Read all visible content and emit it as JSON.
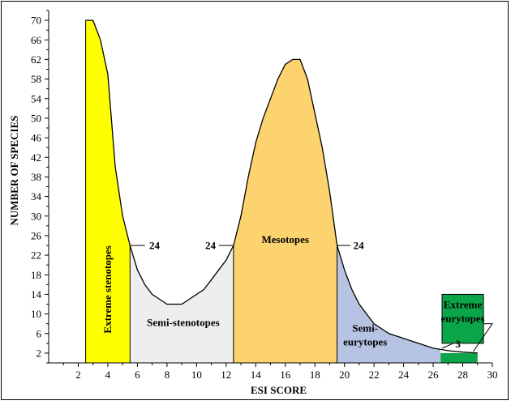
{
  "chart_data": {
    "type": "area",
    "xlabel": "ESI SCORE",
    "ylabel": "NUMBER OF SPECIES",
    "xlim": [
      0,
      30
    ],
    "ylim": [
      0,
      72
    ],
    "xticks": [
      2,
      4,
      6,
      8,
      10,
      12,
      14,
      16,
      18,
      20,
      22,
      24,
      26,
      28,
      30
    ],
    "yticks": [
      2,
      6,
      10,
      14,
      18,
      22,
      26,
      30,
      34,
      38,
      42,
      46,
      50,
      54,
      58,
      62,
      66,
      70
    ],
    "x": [
      2.5,
      3,
      3.5,
      4,
      4.5,
      5,
      5.5,
      6,
      6.5,
      7,
      7.5,
      8,
      8.5,
      9,
      9.5,
      10,
      10.5,
      11,
      11.5,
      12,
      12.5,
      13,
      13.5,
      14,
      14.5,
      15,
      15.5,
      16,
      16.5,
      17,
      17.5,
      18,
      18.5,
      19,
      19.5,
      20,
      20.5,
      21,
      21.5,
      22,
      23,
      24,
      25,
      26,
      27,
      28,
      29
    ],
    "y": [
      70,
      70,
      66,
      59,
      40,
      30,
      24,
      19,
      16,
      14,
      13,
      12,
      12,
      12,
      13,
      14,
      15,
      17,
      19,
      21,
      24,
      30,
      38,
      45,
      50,
      54,
      58,
      61,
      62,
      62,
      58,
      51,
      44,
      35,
      24,
      19,
      15,
      12,
      10,
      8,
      6,
      5,
      4,
      3,
      2.5,
      2.2,
      2
    ],
    "zones": [
      {
        "label": "Extreme stenotopes",
        "from": 2.5,
        "to": 5.5,
        "color": "#ffff00"
      },
      {
        "label": "Semi-stenotopes",
        "from": 5.5,
        "to": 12.5,
        "color": "#eeeeee"
      },
      {
        "label": "Mesotopes",
        "from": 12.5,
        "to": 19.5,
        "color": "#fcd36f"
      },
      {
        "label": "Semi-eurytopes",
        "from": 19.5,
        "to": 26.5,
        "color": "#b7c3e3"
      },
      {
        "label": "Extreme eurytopes",
        "from": 26.5,
        "to": 29,
        "color": "#0ca64a"
      }
    ],
    "boundary_callouts": [
      "24",
      "24",
      "24",
      "3"
    ],
    "grid": false,
    "legend": "none"
  }
}
